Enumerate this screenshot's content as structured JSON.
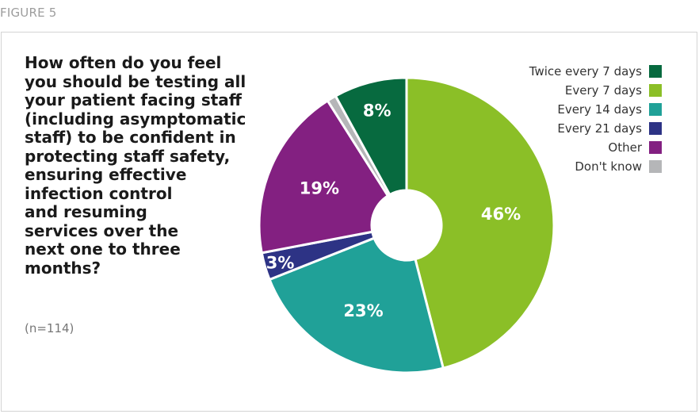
{
  "figure_label": "FIGURE 5",
  "question": "How often do you feel\nyou should be testing all\nyour patient facing staff\n(including asymptomatic\nstaff) to be confident in\nprotecting staff safety,\nensuring effective\ninfection control\nand resuming\nservices over the\nnext one to three\nmonths?",
  "sample_size": "(n=114)",
  "chart_data": {
    "type": "pie",
    "donut": true,
    "title": "",
    "categories": [
      "Twice every 7 days",
      "Every 7 days",
      "Every 14 days",
      "Every 21 days",
      "Other",
      "Don't know"
    ],
    "values": [
      8,
      46,
      23,
      3,
      19,
      1
    ],
    "labels": [
      "8%",
      "46%",
      "23%",
      "3%",
      "19%",
      ""
    ],
    "colors": [
      "#076a3f",
      "#8bbf27",
      "#20a198",
      "#2d3385",
      "#832081",
      "#b5b6b8"
    ],
    "legend_position": "right"
  }
}
